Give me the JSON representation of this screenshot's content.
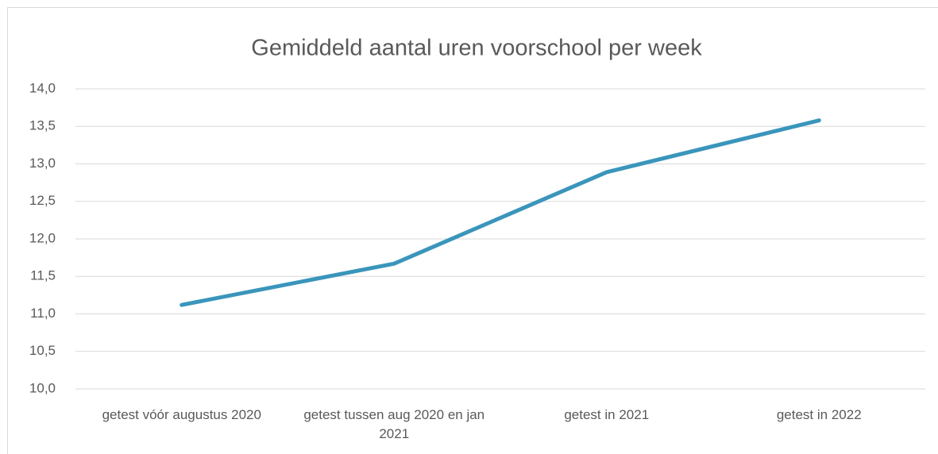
{
  "chart_data": {
    "type": "line",
    "title": "Gemiddeld aantal uren voorschool per week",
    "categories": [
      "getest vóór augustus 2020",
      "getest tussen aug 2020 en jan 2021",
      "getest in 2021",
      "getest in 2022"
    ],
    "series": [
      {
        "name": "Gemiddeld aantal uren voorschool per week",
        "color": "#3a95bb",
        "values": [
          11.12,
          11.67,
          12.89,
          13.58
        ]
      }
    ],
    "ylim": [
      10,
      14
    ],
    "yticks": [
      {
        "value": 10,
        "label": "10,0"
      },
      {
        "value": 10.5,
        "label": "10,5"
      },
      {
        "value": 11,
        "label": "11,0"
      },
      {
        "value": 11.5,
        "label": "11,5"
      },
      {
        "value": 12,
        "label": "12,0"
      },
      {
        "value": 12.5,
        "label": "12,5"
      },
      {
        "value": 13,
        "label": "13,0"
      },
      {
        "value": 13.5,
        "label": "13,5"
      },
      {
        "value": 14,
        "label": "14,0"
      }
    ],
    "grid": true
  }
}
